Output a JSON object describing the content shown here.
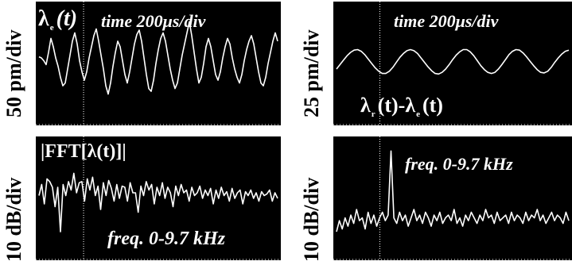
{
  "chart_data": [
    {
      "type": "line",
      "ylabel": "50 pm/div",
      "annotations": {
        "symbol": "λ",
        "subscript": "e",
        "arg": "(t)",
        "time_prefix": "time",
        "time_value": "200μs/div"
      },
      "series": [
        {
          "values": [
            0.12,
            0.1,
            0.05,
            -0.02,
            0.2,
            0.45,
            0.3,
            0.1,
            -0.05,
            -0.25,
            -0.4,
            -0.35,
            -0.1,
            0.15,
            0.4,
            0.55,
            0.35,
            0.05,
            -0.15,
            -0.3,
            -0.15,
            0.1,
            0.3,
            0.5,
            0.62,
            0.4,
            0.15,
            -0.1,
            -0.4,
            -0.55,
            -0.35,
            -0.05,
            0.2,
            0.4,
            0.3,
            0.05,
            -0.2,
            -0.35,
            -0.15,
            0.1,
            0.35,
            0.52,
            0.6,
            0.4,
            0.1,
            -0.2,
            -0.45,
            -0.5,
            -0.3,
            0.0,
            0.25,
            0.45,
            0.55,
            0.4,
            0.15,
            -0.1,
            -0.3,
            -0.45,
            -0.35,
            -0.1,
            0.15,
            0.35,
            0.55,
            0.75,
            0.5,
            0.2,
            -0.1,
            -0.35,
            -0.25,
            0.0,
            0.3,
            0.45,
            0.3,
            0.05,
            -0.2,
            -0.3,
            -0.15,
            0.1,
            0.3,
            0.45,
            0.35,
            0.1,
            -0.1,
            -0.25,
            -0.35,
            -0.2,
            0.05,
            0.25,
            0.4,
            0.5,
            0.35,
            0.1,
            -0.15,
            -0.35,
            -0.4,
            -0.25,
            0.0,
            0.2,
            0.4,
            0.55,
            0.4
          ]
        }
      ]
    },
    {
      "type": "line",
      "ylabel": "25 pm/div",
      "annotations": {
        "time_prefix": "time",
        "time_value": "200μs/div",
        "sym1": "λ",
        "sub1": "r",
        "arg1": "(t)-",
        "sym2": "λ",
        "sub2": "e",
        "arg2": "(t)"
      },
      "series": [
        {
          "values": [
            -0.1,
            -0.02,
            0.06,
            0.14,
            0.2,
            0.24,
            0.25,
            0.22,
            0.16,
            0.08,
            0.0,
            -0.08,
            -0.14,
            -0.18,
            -0.18,
            -0.14,
            -0.07,
            0.02,
            0.11,
            0.18,
            0.23,
            0.25,
            0.23,
            0.18,
            0.1,
            0.02,
            -0.06,
            -0.13,
            -0.18,
            -0.19,
            -0.16,
            -0.1,
            -0.02,
            0.07,
            0.15,
            0.21,
            0.25,
            0.25,
            0.21,
            0.14,
            0.05,
            -0.04,
            -0.11,
            -0.16,
            -0.18,
            -0.16,
            -0.1,
            -0.02,
            0.07,
            0.16,
            0.22,
            0.25,
            0.24,
            0.19,
            0.12,
            0.04,
            -0.04,
            -0.11,
            -0.16,
            -0.17,
            -0.14,
            -0.07,
            0.02,
            0.1,
            0.17,
            0.22,
            0.24
          ]
        }
      ]
    },
    {
      "type": "line",
      "ylabel": "10 dB/div",
      "annotations": {
        "title": "|FFT[λ(t)]|",
        "freq_prefix": "freq.",
        "freq_range": "0-9.7",
        "freq_unit": "kHz"
      },
      "xlim": [
        0,
        9.7
      ],
      "xlabel": "freq. 0-9.7 kHz",
      "series": [
        {
          "values": [
            0.05,
            0.25,
            -0.1,
            0.35,
            0.3,
            0.2,
            -0.15,
            0.2,
            -0.6,
            0.25,
            0.05,
            0.3,
            0.15,
            0.45,
            0.1,
            0.28,
            0.3,
            -0.05,
            0.35,
            0.15,
            0.38,
            0.05,
            0.22,
            -0.2,
            0.28,
            0.05,
            0.32,
            0.18,
            -0.05,
            0.25,
            0.0,
            0.22,
            0.2,
            -0.05,
            0.28,
            0.1,
            0.1,
            -0.25,
            0.22,
            0.05,
            0.3,
            0.15,
            0.25,
            -0.1,
            0.2,
            0.05,
            0.28,
            0.0,
            0.2,
            0.1,
            -0.15,
            0.22,
            0.05,
            0.25,
            0.1,
            0.15,
            -0.05,
            0.2,
            0.05,
            0.1,
            0.22,
            0.0,
            0.15,
            0.05,
            0.18,
            -0.1,
            0.15,
            0.0,
            0.2,
            0.05,
            0.12,
            -0.05,
            0.18,
            0.0,
            0.1,
            0.15,
            -0.1,
            0.12,
            0.05,
            0.15,
            0.0,
            0.1,
            -0.05,
            0.12,
            0.05,
            0.08,
            0.15,
            -0.05,
            0.1,
            0.0
          ]
        }
      ]
    },
    {
      "type": "line",
      "ylabel": "10 dB/div",
      "annotations": {
        "freq_prefix": "freq.",
        "freq_range": "0-9.7",
        "freq_unit": "kHz"
      },
      "xlim": [
        0,
        9.7
      ],
      "xlabel": "freq. 0-9.7 kHz",
      "series": [
        {
          "values": [
            -0.6,
            -0.4,
            -0.55,
            -0.35,
            -0.5,
            -0.3,
            -0.45,
            -0.2,
            -0.4,
            -0.35,
            -0.55,
            -0.25,
            -0.45,
            -0.3,
            -0.5,
            -0.35,
            -0.25,
            -0.4,
            -0.3,
            0.85,
            -0.35,
            -0.45,
            -0.25,
            -0.4,
            -0.3,
            -0.5,
            -0.35,
            -0.2,
            -0.4,
            -0.3,
            -0.45,
            -0.25,
            -0.35,
            -0.5,
            -0.3,
            -0.4,
            -0.25,
            -0.45,
            -0.35,
            -0.3,
            -0.4,
            -0.2,
            -0.45,
            -0.35,
            -0.5,
            -0.3,
            -0.4,
            -0.25,
            -0.35,
            -0.45,
            -0.3,
            -0.4,
            -0.2,
            -0.35,
            -0.3,
            -0.45,
            -0.25,
            -0.4,
            -0.35,
            -0.3,
            -0.45,
            -0.25,
            -0.4,
            -0.3,
            -0.35,
            -0.45,
            -0.25,
            -0.4,
            -0.3,
            -0.35,
            -0.2,
            -0.4,
            -0.3,
            -0.45,
            -0.35,
            -0.25,
            -0.4,
            -0.3,
            -0.35,
            -0.45,
            -0.25,
            -0.4
          ]
        }
      ]
    }
  ]
}
